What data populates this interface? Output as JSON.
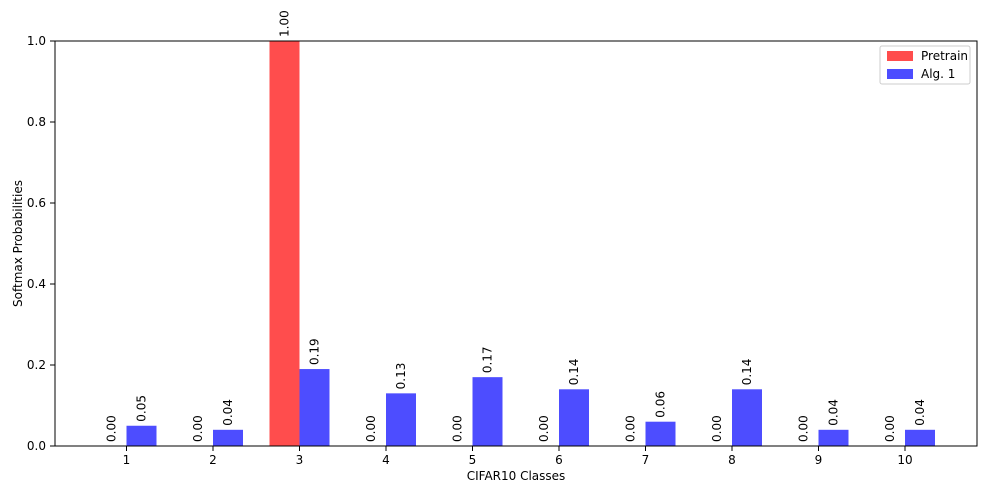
{
  "chart_data": {
    "type": "bar",
    "title": "",
    "xlabel": "CIFAR10 Classes",
    "ylabel": "Softmax Probabilities",
    "categories": [
      "1",
      "2",
      "3",
      "4",
      "5",
      "6",
      "7",
      "8",
      "9",
      "10"
    ],
    "ylim": [
      0,
      1.0
    ],
    "yticks": [
      "0.0",
      "0.2",
      "0.4",
      "0.6",
      "0.8",
      "1.0"
    ],
    "grid": false,
    "legend_position": "top-right",
    "series": [
      {
        "name": "Pretrain",
        "color": "#ff4d4d",
        "values": [
          0.0,
          0.0,
          1.0,
          0.0,
          0.0,
          0.0,
          0.0,
          0.0,
          0.0,
          0.0
        ],
        "labels": [
          "0.00",
          "0.00",
          "1.00",
          "0.00",
          "0.00",
          "0.00",
          "0.00",
          "0.00",
          "0.00",
          "0.00"
        ]
      },
      {
        "name": "Alg. 1",
        "color": "#4d4dff",
        "values": [
          0.05,
          0.04,
          0.19,
          0.13,
          0.17,
          0.14,
          0.06,
          0.14,
          0.04,
          0.04
        ],
        "labels": [
          "0.05",
          "0.04",
          "0.19",
          "0.13",
          "0.17",
          "0.14",
          "0.06",
          "0.14",
          "0.04",
          "0.04"
        ]
      }
    ]
  }
}
